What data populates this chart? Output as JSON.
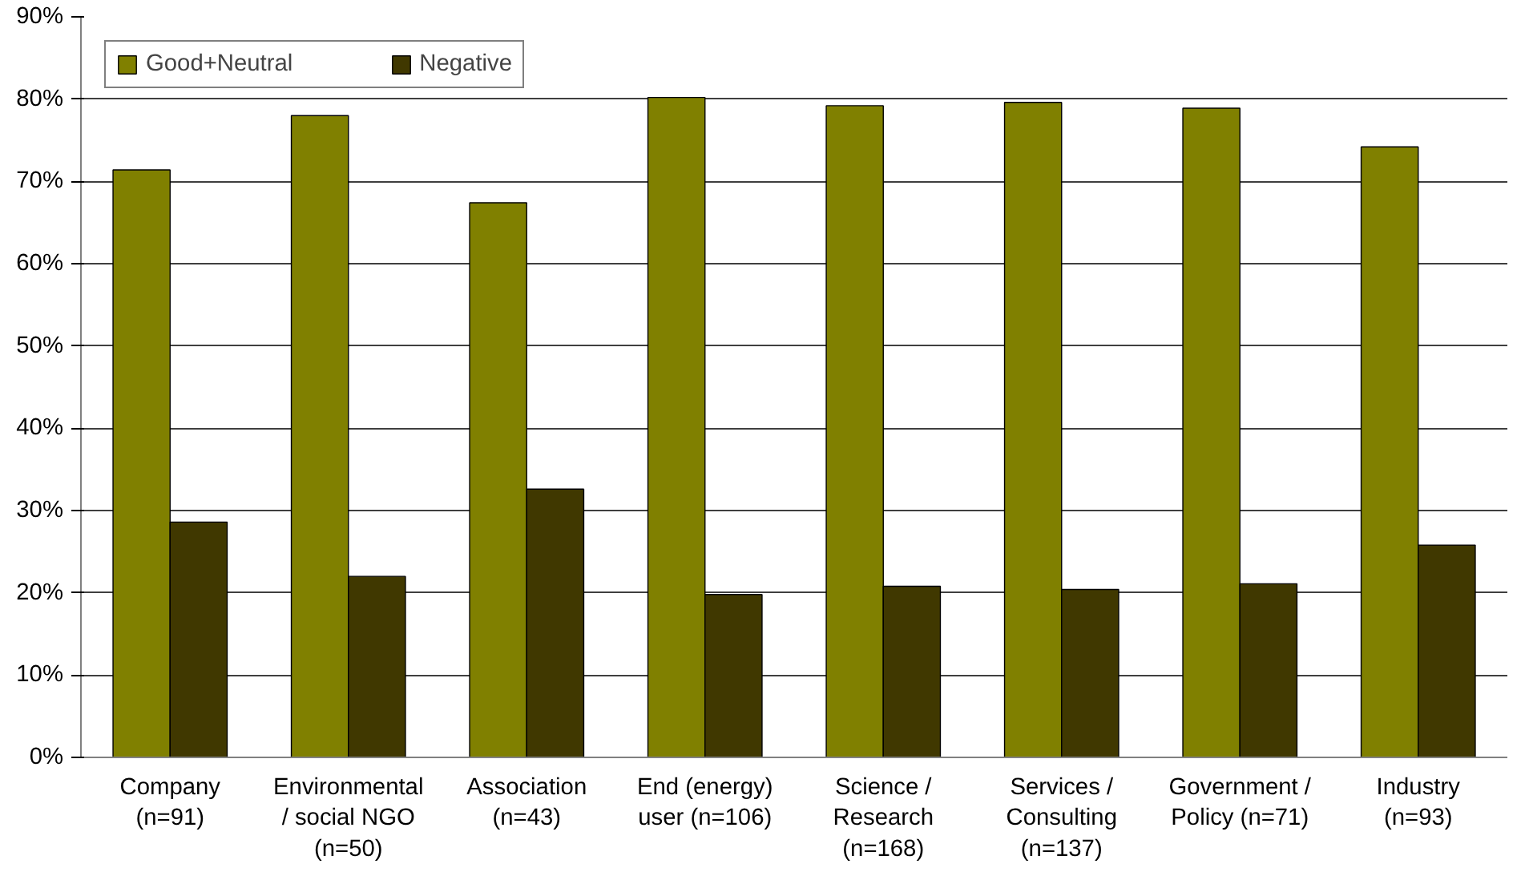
{
  "chart_data": {
    "type": "bar",
    "categories": [
      "Company\n(n=91)",
      "Environmental\n/ social NGO\n(n=50)",
      "Association\n(n=43)",
      "End (energy)\nuser (n=106)",
      "Science /\nResearch\n(n=168)",
      "Services /\nConsulting\n(n=137)",
      "Government /\nPolicy (n=71)",
      "Industry\n(n=93)"
    ],
    "series": [
      {
        "name": "Good+Neutral",
        "color": "#808000",
        "values": [
          71.4,
          78.0,
          67.4,
          80.2,
          79.2,
          79.6,
          78.9,
          74.2
        ]
      },
      {
        "name": "Negative",
        "color": "#403800",
        "values": [
          28.6,
          22.0,
          32.6,
          19.8,
          20.8,
          20.4,
          21.1,
          25.8
        ]
      }
    ],
    "ylim": [
      0,
      90
    ],
    "yticks": [
      {
        "value": 0,
        "label": "0%"
      },
      {
        "value": 10,
        "label": "10%"
      },
      {
        "value": 20,
        "label": "20%"
      },
      {
        "value": 30,
        "label": "30%"
      },
      {
        "value": 40,
        "label": "40%"
      },
      {
        "value": 50,
        "label": "50%"
      },
      {
        "value": 60,
        "label": "60%"
      },
      {
        "value": 70,
        "label": "70%"
      },
      {
        "value": 80,
        "label": "80%"
      },
      {
        "value": 90,
        "label": "90%"
      }
    ],
    "grid": "y",
    "legend": "top left"
  }
}
